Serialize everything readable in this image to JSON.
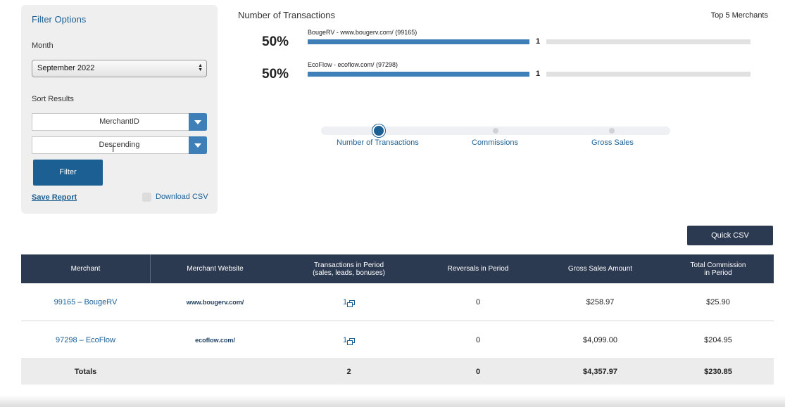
{
  "filter": {
    "title": "Filter Options",
    "month_label": "Month",
    "month_value": "September 2022",
    "sort_label": "Sort Results",
    "sort_field": "MerchantID",
    "sort_order": "Descending",
    "filter_button": "Filter",
    "save_report": "Save Report",
    "download_csv": "Download CSV",
    "download_csv_checked": false
  },
  "overview": {
    "title": "Number of Transactions",
    "right_label": "Top 5 Merchants",
    "bar_color": "#3e7fb7",
    "merchants": [
      {
        "percent": "50%",
        "name": "BougeRV - www.bougerv.com/ (99165)",
        "count": "1",
        "fraction": 0.5
      },
      {
        "percent": "50%",
        "name": "EcoFlow - ecoflow.com/ (97298)",
        "count": "1",
        "fraction": 0.5
      }
    ]
  },
  "metric_slider": {
    "options": [
      "Number of Transactions",
      "Commissions",
      "Gross Sales"
    ],
    "selected": "Number of Transactions"
  },
  "quick_csv": "Quick CSV",
  "table": {
    "header_color": "#2c3a51",
    "headers": {
      "merchant": "Merchant",
      "website": "Merchant Website",
      "transactions_1": "Transactions in Period",
      "transactions_2": "(sales, leads, bonuses)",
      "reversals": "Reversals in Period",
      "gross": "Gross Sales Amount",
      "commission_1": "Total Commission",
      "commission_2": "in Period"
    },
    "rows": [
      {
        "merchant": "99165 – BougeRV",
        "website": "www.bougerv.com/",
        "transactions": "1",
        "reversals": "0",
        "gross": "$258.97",
        "commission": "$25.90"
      },
      {
        "merchant": "97298 – EcoFlow",
        "website": "ecoflow.com/",
        "transactions": "1",
        "reversals": "0",
        "gross": "$4,099.00",
        "commission": "$204.95"
      }
    ],
    "totals": {
      "label": "Totals",
      "transactions": "2",
      "reversals": "0",
      "gross": "$4,357.97",
      "commission": "$230.85"
    }
  }
}
